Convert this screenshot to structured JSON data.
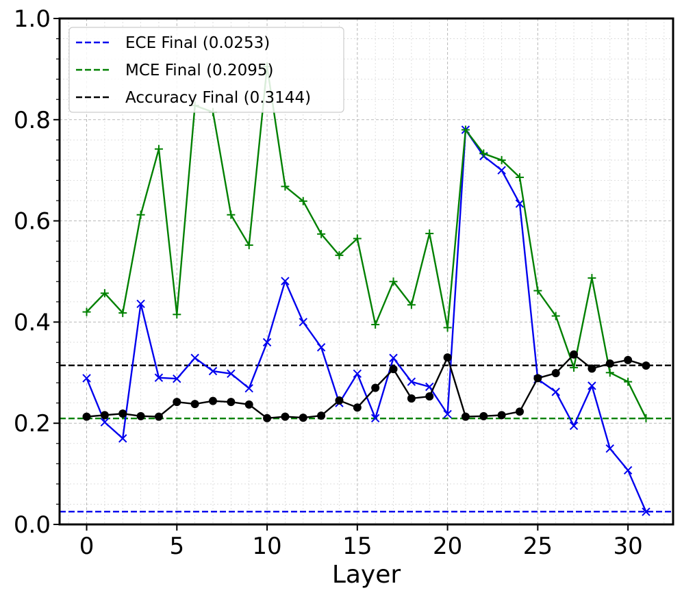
{
  "chart_data": {
    "type": "line",
    "title": "",
    "xlabel": "Layer",
    "ylabel": "",
    "xlim": [
      -1.5,
      32.5
    ],
    "ylim": [
      0.0,
      1.0
    ],
    "xticks": [
      0,
      5,
      10,
      15,
      20,
      25,
      30
    ],
    "yticks": [
      0.0,
      0.2,
      0.4,
      0.6,
      0.8,
      1.0
    ],
    "xtick_labels": [
      "0",
      "5",
      "10",
      "15",
      "20",
      "25",
      "30"
    ],
    "ytick_labels": [
      "0.0",
      "0.2",
      "0.4",
      "0.6",
      "0.8",
      "1.0"
    ],
    "grid": "on (major and minor)",
    "legend_position": "top-left",
    "x": [
      0,
      1,
      2,
      3,
      4,
      5,
      6,
      7,
      8,
      9,
      10,
      11,
      12,
      13,
      14,
      15,
      16,
      17,
      18,
      19,
      20,
      21,
      22,
      23,
      24,
      25,
      26,
      27,
      28,
      29,
      30,
      31
    ],
    "series": [
      {
        "color": "#0000ee",
        "marker": "x",
        "values": [
          0.289,
          0.202,
          0.17,
          0.436,
          0.29,
          0.288,
          0.329,
          0.303,
          0.298,
          0.269,
          0.36,
          0.481,
          0.4,
          0.35,
          0.24,
          0.298,
          0.21,
          0.329,
          0.282,
          0.272,
          0.218,
          0.78,
          0.728,
          0.7,
          0.634,
          0.287,
          0.262,
          0.195,
          0.274,
          0.15,
          0.107,
          0.025
        ]
      },
      {
        "color": "#008000",
        "marker": "+",
        "values": [
          0.42,
          0.457,
          0.418,
          0.612,
          0.742,
          0.415,
          0.828,
          0.815,
          0.612,
          0.552,
          0.905,
          0.668,
          0.639,
          0.574,
          0.532,
          0.565,
          0.395,
          0.48,
          0.434,
          0.575,
          0.389,
          0.78,
          0.733,
          0.72,
          0.686,
          0.462,
          0.412,
          0.31,
          0.487,
          0.3,
          0.282,
          0.21
        ]
      },
      {
        "color": "#000000",
        "marker": "o",
        "values": [
          0.213,
          0.216,
          0.219,
          0.214,
          0.213,
          0.242,
          0.238,
          0.244,
          0.242,
          0.237,
          0.21,
          0.213,
          0.211,
          0.215,
          0.245,
          0.231,
          0.27,
          0.307,
          0.249,
          0.253,
          0.33,
          0.213,
          0.214,
          0.216,
          0.223,
          0.289,
          0.299,
          0.336,
          0.308,
          0.318,
          0.325,
          0.314
        ]
      }
    ],
    "reference_lines": [
      {
        "name": "ECE Final (0.0253)",
        "value": 0.0253,
        "color": "#0000ee",
        "style": "dashed"
      },
      {
        "name": "MCE Final (0.2095)",
        "value": 0.2095,
        "color": "#008000",
        "style": "dashed"
      },
      {
        "name": "Accuracy Final (0.3144)",
        "value": 0.3144,
        "color": "#000000",
        "style": "dashed"
      }
    ]
  }
}
